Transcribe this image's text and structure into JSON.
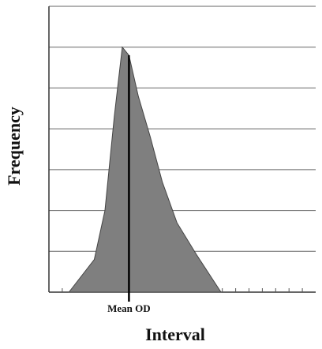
{
  "chart_data": {
    "type": "area",
    "x_label": "Interval",
    "y_label": "Frequency",
    "x": [
      1.5,
      3.4,
      4.2,
      4.9,
      5.5,
      6,
      6.7,
      7.6,
      8.5,
      9.6,
      11.1,
      12.9
    ],
    "values": [
      0,
      0.8,
      2,
      4.3,
      6,
      5.8,
      4.8,
      3.8,
      2.7,
      1.7,
      0.9,
      0
    ],
    "color": "#7f7f7f",
    "xlim": [
      0,
      20
    ],
    "ylim": [
      0,
      7
    ],
    "xticks": [
      1,
      2,
      3,
      4,
      5,
      6,
      7,
      8,
      9,
      10,
      11,
      12,
      13,
      14,
      15,
      16,
      17,
      18,
      19
    ],
    "yticks": [
      0,
      1,
      2,
      3,
      4,
      5,
      6,
      7
    ],
    "grid": true,
    "mean_line": {
      "x": 6,
      "label": "Mean OD"
    }
  }
}
